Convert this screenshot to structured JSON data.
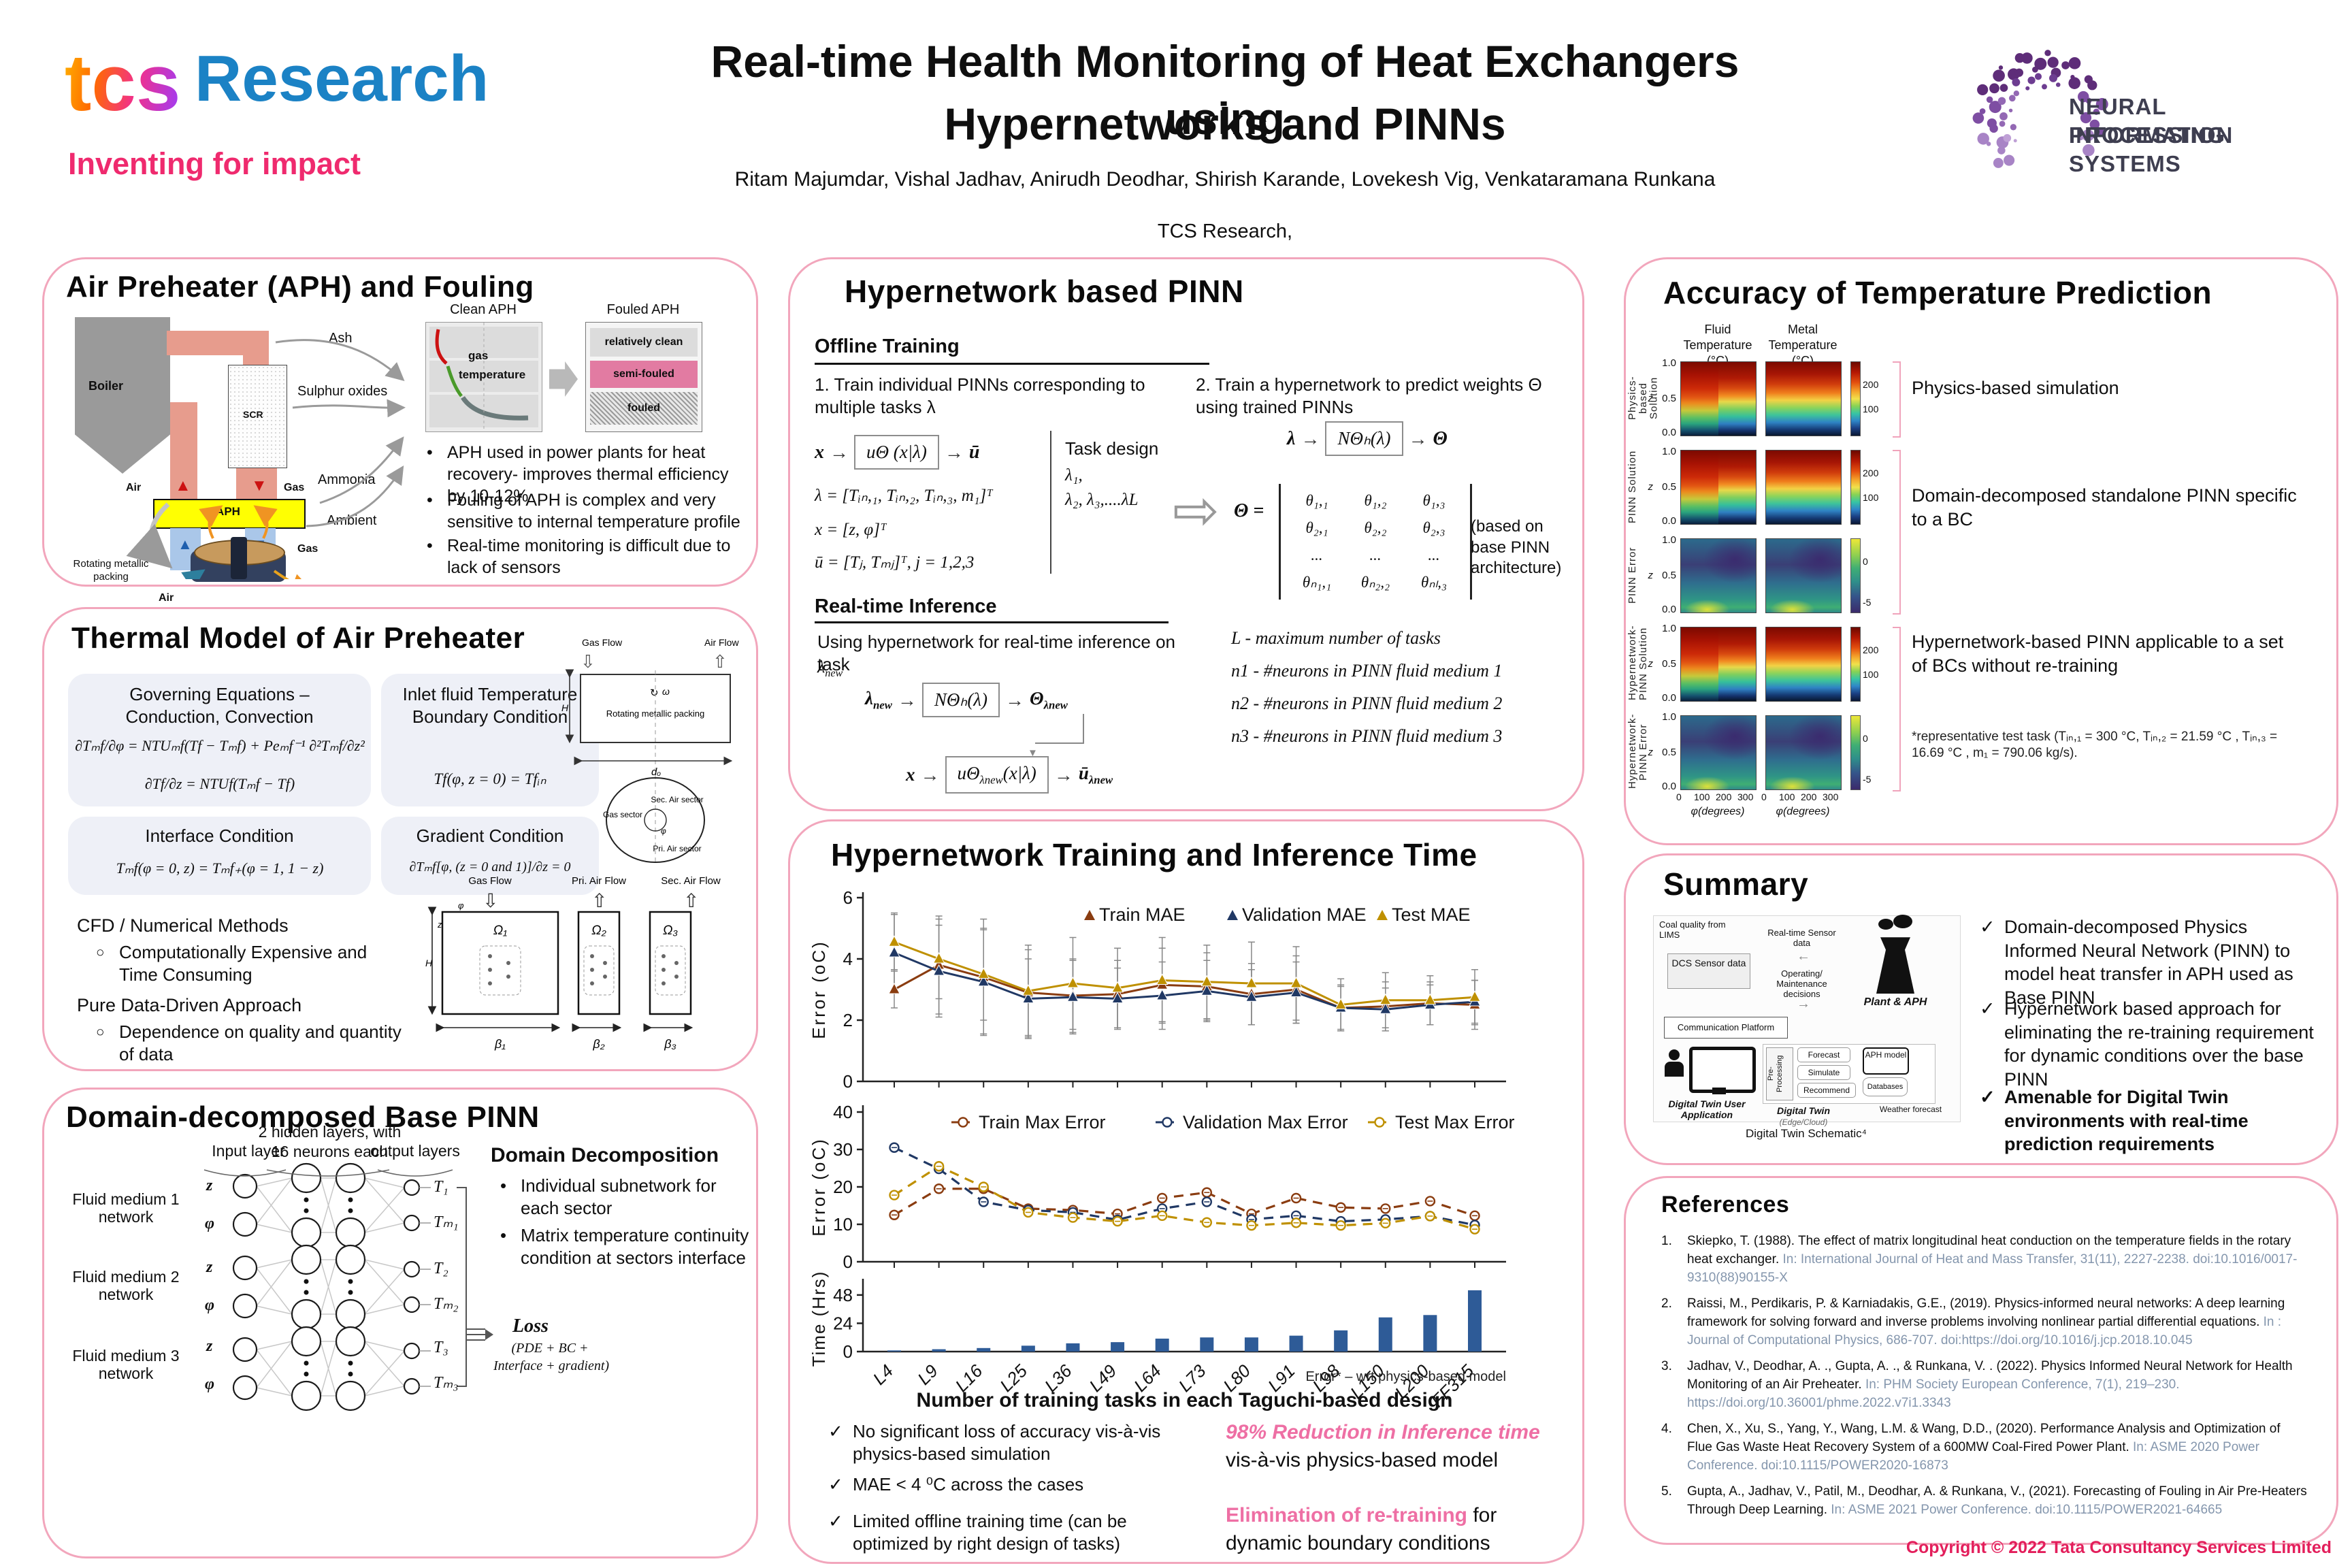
{
  "header": {
    "logo_tcs": "tcs",
    "logo_research": "Research",
    "logo_tagline": "Inventing for impact",
    "title_line1": "Real-time Health Monitoring of Heat Exchangers using",
    "title_line2": "Hypernetworks and PINNs",
    "authors": "Ritam Majumdar, Vishal Jadhav, Anirudh Deodhar, Shirish Karande, Lovekesh Vig, Venkataramana Runkana",
    "affiliation": "TCS Research,",
    "neurips1": "NEURAL INFORMATION",
    "neurips2": "PROCESSING SYSTEMS"
  },
  "aph": {
    "title": "Air Preheater (APH) and Fouling",
    "boiler": "Boiler",
    "scr": "SCR",
    "aphbox": "APH",
    "air": "Air",
    "gas": "Gas",
    "ash": "Ash",
    "sulphur": "Sulphur oxides",
    "ammonia": "Ammonia",
    "ambient": "Ambient",
    "rotating": "Rotating metallic packing",
    "gas2": "Gas",
    "air2": "Air",
    "clean_aph": "Clean APH",
    "fouled_aph": "Fouled APH",
    "gas_lbl": "gas",
    "temp_lbl": "temperature",
    "rel_clean": "relatively clean",
    "semi_fouled": "semi-fouled",
    "fouled": "fouled",
    "bullets": [
      "APH used in power plants for heat recovery- improves thermal efficiency by 10-12%",
      "Fouling of APH is complex and very sensitive to internal temperature profile",
      "Real-time monitoring is difficult due to lack of sensors"
    ]
  },
  "thermal": {
    "title": "Thermal Model of Air Preheater",
    "box1_h": "Governing Equations – Conduction, Convection",
    "box1_e1": "∂Tₘf/∂φ = NTUₘf(Tf − Tₘf) + Peₘf⁻¹ ∂²Tₘf/∂z²",
    "box1_e2": "∂Tf/∂z = NTUf(Tₘf − Tf)",
    "box2_h": "Inlet fluid Temperature Boundary Condition",
    "box2_e": "Tf(φ, z = 0) = Tfᵢₙ",
    "box3_h": "Interface Condition",
    "box3_e": "Tₘf(φ = 0, z) = Tₘf₊(φ = 1, 1 − z)",
    "box4_h": "Gradient Condition",
    "box4_e": "∂Tₘf[φ, (z = 0 and 1)]/∂z = 0",
    "cfd_h": "CFD / Numerical Methods",
    "cfd_b": "Computationally Expensive and Time Consuming",
    "dd_h": "Pure Data-Driven Approach",
    "dd_b": "Dependence on quality and quantity of data",
    "sch": {
      "gas_flow": "Gas Flow",
      "air_flow": "Air Flow",
      "packing": "Rotating metallic packing",
      "omega": "ω",
      "H": "H",
      "dO": "dₒ",
      "gas_sector": "Gas sector",
      "sec_air": "Sec. Air sector",
      "pri_air": "Pri. Air sector",
      "phi": "φ"
    },
    "dom": {
      "gas_flow": "Gas Flow",
      "pri": "Pri. Air Flow",
      "sec": "Sec. Air Flow",
      "o1": "Ω₁",
      "o2": "Ω₂",
      "o3": "Ω₃",
      "b1": "β₁",
      "b2": "β₂",
      "b3": "β₃",
      "H": "H",
      "z": "z",
      "phi": "φ"
    }
  },
  "basepinn": {
    "title": "Domain-decomposed Base PINN",
    "col1": "Input layer",
    "col2": "2 hidden layers, with 16 neurons each",
    "col3": "output layers",
    "networks": [
      {
        "label": "Fluid medium 1 network",
        "in1": "z",
        "in2": "φ",
        "out1": "T₁",
        "out2": "Tₘ₁"
      },
      {
        "label": "Fluid medium 2 network",
        "in1": "z",
        "in2": "φ",
        "out1": "T₂",
        "out2": "Tₘ₂"
      },
      {
        "label": "Fluid medium 3 network",
        "in1": "z",
        "in2": "φ",
        "out1": "T₃",
        "out2": "Tₘ₃"
      }
    ],
    "dd_heading": "Domain Decomposition",
    "dd_b1": "Individual subnetwork for each sector",
    "dd_b2": "Matrix temperature continuity condition at sectors interface",
    "loss": "Loss",
    "loss_d1": "(PDE + BC +",
    "loss_d2": "Interface + gradient)"
  },
  "hyper": {
    "title": "Hypernetwork based PINN",
    "offline": "Offline Training",
    "step1": "1. Train individual PINNs corresponding to multiple tasks λ",
    "step2": "2. Train a hypernetwork to predict weights Θ using trained PINNs",
    "f1_in": "x",
    "f1_box": "uΘ (x|λ)",
    "f1_out": "ū",
    "lam_def": "λ = [Tᵢₙ,₁, Tᵢₙ,₂, Tᵢₙ,₃, m₁]ᵀ",
    "x_def": "x = [z, φ]ᵀ",
    "u_def": "ū = [Tⱼ, Tₘⱼ]ᵀ,  j = 1,2,3",
    "task_design": "Task design",
    "task1": "λ₁,",
    "task2": "λ₂, λ₃,....λL",
    "f2_in": "λ",
    "f2_box": "NΘₕ(λ)",
    "f2_out": "Θ",
    "theta_eq": "Θ =",
    "theta_rows": [
      [
        "θ₁,₁",
        "θ₁,₂",
        "θ₁,₃"
      ],
      [
        "θ₂,₁",
        "θ₂,₂",
        "θ₂,₃"
      ],
      [
        "...",
        "...",
        "..."
      ],
      [
        "θₙ₁,₁",
        "θₙ₂,₂",
        "θₙₗ,₃"
      ]
    ],
    "theta_note": "(based on base PINN architecture)",
    "rt": "Real-time Inference",
    "rt_text": "Using hypernetwork for real-time inference on task",
    "rt_task_main": "λ",
    "rt_task_sub": "new",
    "rf1_box": "NΘₕ(λ)",
    "rf1_out_main": "Θ",
    "rf1_out_sub": "λnew",
    "rf2_in": "x",
    "rf2_box_main": "uΘ",
    "rf2_box_sub": "λnew",
    "rf2_box_tail": "(x|λ)",
    "rf2_out_main": "ū",
    "rf2_out_sub": "λnew",
    "legend": [
      "L - maximum number of tasks",
      "n1 - #neurons in PINN fluid medium 1",
      "n2 - #neurons in PINN fluid medium 2",
      "n3 - #neurons in PINN fluid medium 3"
    ]
  },
  "timing": {
    "title": "Hypernetwork Training and Inference Time",
    "check1": "No significant loss of accuracy vis-à-vis physics-based simulation",
    "check2": "MAE < 4 ⁰C across the cases",
    "check3": "Limited offline training time (can be optimized by right design of tasks)",
    "h1_pink": "98% Reduction in Inference time",
    "h1_rest": " vis-à-vis physics-based model",
    "h2_pink": "Elimination of re-training",
    "h2_rest": " for dynamic boundary conditions"
  },
  "chart_data": [
    {
      "type": "line",
      "ylabel": "Error (oC)",
      "ylim": [
        0,
        6
      ],
      "yticks": [
        0,
        2,
        4,
        6
      ],
      "grid": false,
      "legend_position": "top-inside",
      "categories": [
        "L4",
        "L9",
        "L16",
        "L25",
        "L36",
        "L49",
        "L64",
        "L73",
        "L80",
        "L91",
        "L98",
        "L150",
        "L200",
        "FF315"
      ],
      "series": [
        {
          "name": "Train MAE",
          "color": "#8a3c10",
          "values": [
            3.0,
            3.8,
            3.4,
            2.9,
            2.8,
            2.85,
            3.15,
            3.1,
            2.85,
            3.0,
            2.4,
            2.45,
            2.55,
            2.5
          ],
          "err": [
            0.6,
            1.6,
            1.9,
            1.4,
            1.2,
            1.1,
            1.2,
            1.1,
            1.0,
            1.1,
            0.75,
            0.8,
            0.7,
            0.8
          ]
        },
        {
          "name": "Validation MAE",
          "color": "#203864",
          "values": [
            4.2,
            3.6,
            3.25,
            2.7,
            2.75,
            2.7,
            2.8,
            2.95,
            2.75,
            2.9,
            2.4,
            2.35,
            2.5,
            2.6
          ],
          "err": [
            1.3,
            1.5,
            1.7,
            1.3,
            1.2,
            1.0,
            1.1,
            1.0,
            0.9,
            1.0,
            0.7,
            0.7,
            0.65,
            0.7
          ]
        },
        {
          "name": "Test MAE",
          "color": "#bf9000",
          "values": [
            4.55,
            4.0,
            3.5,
            2.95,
            3.2,
            3.05,
            3.3,
            3.25,
            3.2,
            3.2,
            2.5,
            2.65,
            2.65,
            2.75
          ],
          "err": [
            0.9,
            1.3,
            1.5,
            1.5,
            1.5,
            1.3,
            1.4,
            1.2,
            1.35,
            1.2,
            0.85,
            0.9,
            0.8,
            0.9
          ]
        }
      ]
    },
    {
      "type": "line-dashed",
      "ylabel": "Error (oC)",
      "ylim": [
        0,
        40
      ],
      "yticks": [
        0,
        10,
        20,
        30,
        40
      ],
      "grid": false,
      "legend_position": "top-inside",
      "categories": [
        "L4",
        "L9",
        "L16",
        "L25",
        "L36",
        "L49",
        "L64",
        "L73",
        "L80",
        "L91",
        "L98",
        "L150",
        "L200",
        "FF315"
      ],
      "series": [
        {
          "name": "Train Max Error",
          "color": "#8a3c10",
          "values": [
            12.5,
            19.5,
            19.5,
            14.2,
            13.8,
            12.8,
            17.0,
            18.5,
            12.8,
            17.0,
            14.5,
            14.2,
            16.2,
            12.3
          ]
        },
        {
          "name": "Validation Max Error",
          "color": "#203864",
          "values": [
            30.5,
            24.8,
            16.0,
            13.8,
            13.2,
            11.2,
            14.2,
            16.0,
            11.3,
            12.3,
            10.8,
            11.3,
            12.2,
            9.8
          ]
        },
        {
          "name": "Test Max Error",
          "color": "#bf9000",
          "values": [
            17.8,
            25.5,
            20.0,
            13.2,
            11.8,
            10.8,
            12.3,
            10.5,
            9.7,
            10.4,
            9.7,
            10.3,
            12.2,
            8.7
          ]
        }
      ]
    },
    {
      "type": "bar",
      "ylabel": "Time (Hrs)",
      "ylim": [
        0,
        56
      ],
      "yticks": [
        0,
        24,
        48
      ],
      "grid": false,
      "categories": [
        "L4",
        "L9",
        "L16",
        "L25",
        "L36",
        "L49",
        "L64",
        "L73",
        "L80",
        "L91",
        "L98",
        "L150",
        "L200",
        "FF315"
      ],
      "series": [
        {
          "name": "Training time",
          "color": "#2e5b97",
          "values": [
            1,
            2,
            3,
            5,
            7,
            8,
            11,
            12,
            12,
            13.5,
            18,
            29,
            31,
            52
          ]
        }
      ],
      "xlabel": "Number of training tasks in each Taguchi-based design",
      "footnote": "Error* – wrt physics-based model"
    }
  ],
  "accuracy": {
    "title": "Accuracy of Temperature Prediction",
    "col1": "Fluid Temperature (°C)",
    "col2": "Metal Temperature (°C)",
    "yaxis": "z",
    "ytick_top": "1.0",
    "ytick_mid": "0.5",
    "ytick_bot": "0.0",
    "xticks": [
      "0",
      "100",
      "200",
      "300"
    ],
    "xlabel": "φ(degrees)",
    "cbar_solution": [
      "200",
      "100"
    ],
    "cbar_error": [
      "0",
      "-5"
    ],
    "rows": [
      {
        "label": "Physics- based Solution",
        "type": "solution"
      },
      {
        "label": "PINN Solution",
        "type": "solution"
      },
      {
        "label": "PINN Error",
        "type": "error"
      },
      {
        "label": "Hypernetwork- PINN Solution",
        "type": "solution"
      },
      {
        "label": "Hypernetwork- PINN Error",
        "type": "error"
      }
    ],
    "note1": "Physics-based simulation",
    "note2": "Domain-decomposed standalone PINN specific to a BC",
    "note4": "Hypernetwork-based PINN applicable to a set of BCs without re-training",
    "footnote": "*representative test task (Tᵢₙ,₁ = 300 °C, Tᵢₙ,₂ = 21.59 °C , Tᵢₙ,₃ = 16.69 °C , m₁ = 790.06 kg/s)."
  },
  "summary": {
    "title": "Summary",
    "sch": {
      "coal": "Coal quality from LIMS",
      "dcs": "DCS Sensor data",
      "rts": "Real-time Sensor data",
      "om": "Operating/ Maintenance decisions",
      "plant": "Plant & APH",
      "comm": "Communication Platform",
      "dtua": "Digital Twin User Application",
      "pre": "Pre- Processing",
      "forecast": "Forecast",
      "simulate": "Simulate",
      "recommend": "Recommend",
      "aphmodel": "APH model",
      "databases": "Databases",
      "dt": "Digital Twin",
      "dtsub": "(Edge/Cloud)",
      "weather": "Weather forecast",
      "caption": "Digital Twin Schematic⁴"
    },
    "b1": "Domain-decomposed Physics Informed Neural Network (PINN) to model heat transfer in APH used as Base PINN",
    "b2": "Hypernetwork based approach for eliminating the re-training requirement for dynamic conditions over the base PINN",
    "b3": "Amenable for Digital Twin environments with real-time prediction requirements"
  },
  "references": {
    "title": "References",
    "items": [
      {
        "n": "1.",
        "text": "Skiepko, T. (1988). The effect of matrix longitudinal heat conduction on the temperature fields in the rotary heat exchanger. ",
        "src": "In: International Journal of Heat and Mass Transfer, 31(11), 2227-2238. doi:10.1016/0017-9310(88)90155-X"
      },
      {
        "n": "2.",
        "text": "Raissi, M., Perdikaris, P. & Karniadakis, G.E., (2019). Physics-informed neural networks: A deep learning framework for solving forward and inverse problems involving nonlinear partial differential equations. ",
        "src": "In : Journal of Computational Physics, 686-707. doi:https://doi.org/10.1016/j.jcp.2018.10.045"
      },
      {
        "n": "3.",
        "text": "Jadhav, V., Deodhar, A. ., Gupta, A. ., & Runkana, V. . (2022). Physics Informed Neural Network for Health Monitoring of an Air Preheater. ",
        "src": "In: PHM Society European Conference, 7(1), 219–230. https://doi.org/10.36001/phme.2022.v7i1.3343"
      },
      {
        "n": "4.",
        "text": "Chen, X., Xu, S., Yang, Y., Wang, L.M. & Wang, D.D., (2020). Performance Analysis and Optimization of Flue Gas Waste Heat Recovery System of a 600MW Coal-Fired Power Plant. ",
        "src": "In: ASME 2020 Power Conference. doi:10.1115/POWER2020-16873"
      },
      {
        "n": "5.",
        "text": "Gupta, A., Jadhav, V., Patil, M., Deodhar, A. & Runkana, V., (2021). Forecasting of Fouling in Air Pre-Heaters Through Deep Learning. ",
        "src": "In: ASME 2021 Power Conference. doi:10.1115/POWER2021-64665"
      }
    ]
  },
  "footer": {
    "copyright": "Copyright © 2022 Tata Consultancy Services Limited"
  }
}
